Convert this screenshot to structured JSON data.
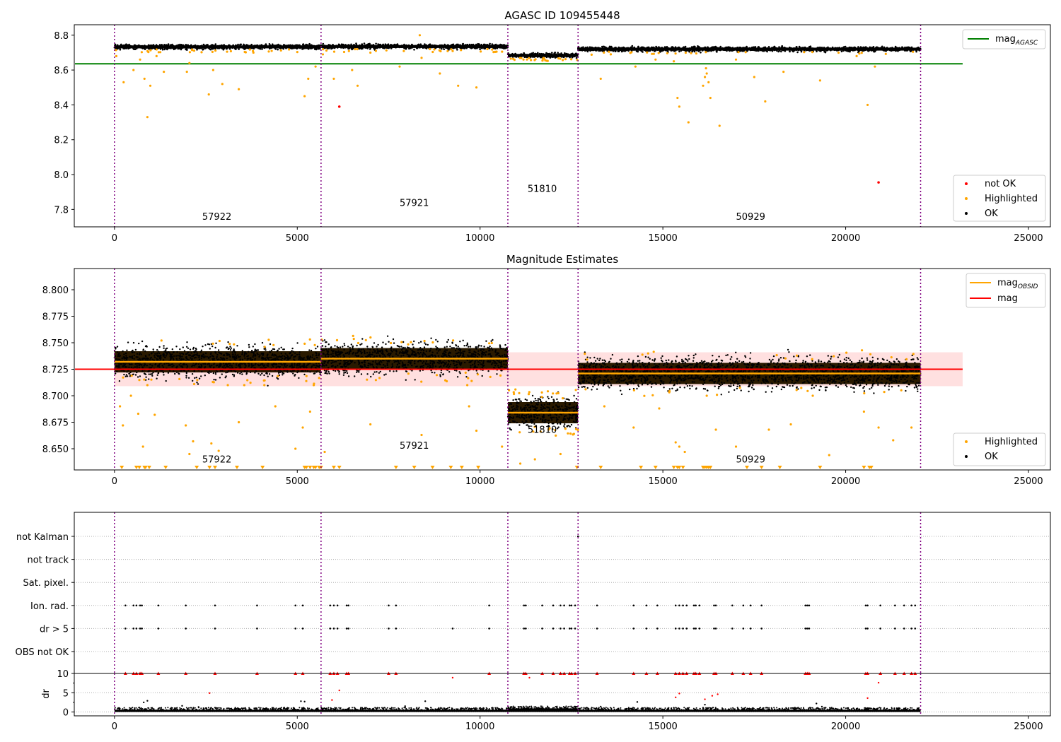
{
  "chart_data": [
    {
      "type": "scatter",
      "title": "AGASC ID 109455448",
      "xlabel": "",
      "ylabel": "",
      "xlim": [
        -1100,
        25600
      ],
      "ylim": [
        7.7,
        8.86
      ],
      "xticks": [
        0,
        5000,
        10000,
        15000,
        20000,
        25000
      ],
      "yticks": [
        7.8,
        8.0,
        8.2,
        8.4,
        8.6,
        8.8
      ],
      "xtick_labels": [
        "0",
        "5000",
        "10000",
        "15000",
        "20000",
        "25000"
      ],
      "ytick_labels": [
        "7.8",
        "8.0",
        "8.2",
        "8.4",
        "8.6",
        "8.8"
      ],
      "grid": false,
      "obs_boundaries": [
        0,
        5650,
        10760,
        12680,
        22050
      ],
      "obs_labels": [
        {
          "text": "57922",
          "x": 2800,
          "y": 7.74
        },
        {
          "text": "57921",
          "x": 8200,
          "y": 7.82
        },
        {
          "text": "51810",
          "x": 11700,
          "y": 7.9
        },
        {
          "text": "50929",
          "x": 17400,
          "y": 7.74
        }
      ],
      "reference_line": {
        "name": "mag",
        "subscript": "AGASC",
        "y": 8.636,
        "x": [
          -1100,
          23200
        ],
        "color": "#008000"
      },
      "ok_bands": [
        {
          "x": [
            0,
            5650
          ],
          "center": 8.733,
          "half": 0.012
        },
        {
          "x": [
            5650,
            10760
          ],
          "center": 8.735,
          "half": 0.012
        },
        {
          "x": [
            10760,
            12680
          ],
          "center": 8.684,
          "half": 0.012
        },
        {
          "x": [
            12680,
            22050
          ],
          "center": 8.72,
          "half": 0.012
        }
      ],
      "highlighted_points": [
        [
          50,
          8.68
        ],
        [
          250,
          8.53
        ],
        [
          520,
          8.6
        ],
        [
          700,
          8.66
        ],
        [
          820,
          8.55
        ],
        [
          900,
          8.33
        ],
        [
          980,
          8.51
        ],
        [
          1150,
          8.68
        ],
        [
          1350,
          8.59
        ],
        [
          1980,
          8.59
        ],
        [
          2050,
          8.64
        ],
        [
          2580,
          8.46
        ],
        [
          2700,
          8.6
        ],
        [
          2950,
          8.52
        ],
        [
          3400,
          8.49
        ],
        [
          3800,
          8.7
        ],
        [
          4300,
          8.71
        ],
        [
          5200,
          8.45
        ],
        [
          5300,
          8.55
        ],
        [
          5500,
          8.62
        ],
        [
          5700,
          8.69
        ],
        [
          6000,
          8.55
        ],
        [
          6500,
          8.6
        ],
        [
          6650,
          8.51
        ],
        [
          7000,
          8.7
        ],
        [
          7800,
          8.62
        ],
        [
          8350,
          8.8
        ],
        [
          8400,
          8.67
        ],
        [
          8900,
          8.58
        ],
        [
          9400,
          8.51
        ],
        [
          9900,
          8.5
        ],
        [
          10200,
          8.72
        ],
        [
          13300,
          8.55
        ],
        [
          14250,
          8.62
        ],
        [
          14800,
          8.66
        ],
        [
          15300,
          8.65
        ],
        [
          15400,
          8.44
        ],
        [
          15450,
          8.39
        ],
        [
          15700,
          8.3
        ],
        [
          16100,
          8.51
        ],
        [
          16150,
          8.56
        ],
        [
          16180,
          8.61
        ],
        [
          16200,
          8.58
        ],
        [
          16250,
          8.53
        ],
        [
          16300,
          8.44
        ],
        [
          16550,
          8.28
        ],
        [
          17000,
          8.66
        ],
        [
          17500,
          8.56
        ],
        [
          17800,
          8.42
        ],
        [
          18300,
          8.59
        ],
        [
          19300,
          8.54
        ],
        [
          20300,
          8.68
        ],
        [
          20600,
          8.4
        ],
        [
          20800,
          8.62
        ]
      ],
      "not_ok_points": [
        [
          6150,
          8.39
        ],
        [
          20900,
          7.955
        ]
      ],
      "legends": [
        {
          "placement": "upper right",
          "entries": [
            {
              "name": "mag",
              "subscript": "AGASC",
              "kind": "line",
              "color": "#008000"
            }
          ]
        },
        {
          "placement": "lower right",
          "entries": [
            {
              "name": "not OK",
              "kind": "marker",
              "color": "#ff0000"
            },
            {
              "name": "Highlighted",
              "kind": "marker",
              "color": "#ffa500"
            },
            {
              "name": "OK",
              "kind": "marker",
              "color": "#000000"
            }
          ]
        }
      ]
    },
    {
      "type": "scatter",
      "title": "Magnitude Estimates",
      "xlabel": "",
      "ylabel": "",
      "xlim": [
        -1100,
        25600
      ],
      "ylim": [
        8.63,
        8.82
      ],
      "xticks": [
        0,
        5000,
        10000,
        15000,
        20000,
        25000
      ],
      "yticks": [
        8.65,
        8.675,
        8.7,
        8.725,
        8.75,
        8.775,
        8.8
      ],
      "xtick_labels": [
        "0",
        "5000",
        "10000",
        "15000",
        "20000",
        "25000"
      ],
      "ytick_labels": [
        "8.650",
        "8.675",
        "8.700",
        "8.725",
        "8.750",
        "8.775",
        "8.800"
      ],
      "grid": false,
      "obs_boundaries": [
        0,
        5650,
        10760,
        12680,
        22050
      ],
      "obs_labels": [
        {
          "text": "57922",
          "x": 2800,
          "y": 8.637
        },
        {
          "text": "57921",
          "x": 8200,
          "y": 8.65
        },
        {
          "text": "51810",
          "x": 11700,
          "y": 8.665
        },
        {
          "text": "50929",
          "x": 17400,
          "y": 8.637
        }
      ],
      "mag_line": {
        "name": "mag",
        "y": 8.725,
        "band": [
          8.709,
          8.741
        ],
        "x": [
          -1100,
          23200
        ],
        "color": "#ff0000"
      },
      "obsid_segments": [
        {
          "x": [
            0,
            5650
          ],
          "y": 8.732,
          "half": 0.01
        },
        {
          "x": [
            5650,
            10760
          ],
          "y": 8.735,
          "half": 0.01
        },
        {
          "x": [
            10760,
            12680
          ],
          "y": 8.684,
          "half": 0.01
        },
        {
          "x": [
            12680,
            22050
          ],
          "y": 8.721,
          "half": 0.01
        }
      ],
      "highlighted_points": [
        [
          150,
          8.69
        ],
        [
          230,
          8.672
        ],
        [
          450,
          8.7
        ],
        [
          650,
          8.683
        ],
        [
          780,
          8.652
        ],
        [
          900,
          8.71
        ],
        [
          1100,
          8.682
        ],
        [
          1950,
          8.672
        ],
        [
          2050,
          8.645
        ],
        [
          2150,
          8.657
        ],
        [
          2650,
          8.655
        ],
        [
          2850,
          8.648
        ],
        [
          3100,
          8.71
        ],
        [
          3400,
          8.675
        ],
        [
          3550,
          8.71
        ],
        [
          4100,
          8.71
        ],
        [
          4400,
          8.69
        ],
        [
          4950,
          8.65
        ],
        [
          5150,
          8.67
        ],
        [
          5350,
          8.685
        ],
        [
          5450,
          8.71
        ],
        [
          5750,
          8.647
        ],
        [
          7000,
          8.673
        ],
        [
          8400,
          8.663
        ],
        [
          9650,
          8.71
        ],
        [
          9700,
          8.69
        ],
        [
          9900,
          8.667
        ],
        [
          10600,
          8.652
        ],
        [
          11100,
          8.636
        ],
        [
          11500,
          8.64
        ],
        [
          12200,
          8.645
        ],
        [
          13400,
          8.69
        ],
        [
          14200,
          8.67
        ],
        [
          14900,
          8.688
        ],
        [
          15350,
          8.656
        ],
        [
          15450,
          8.652
        ],
        [
          15600,
          8.647
        ],
        [
          16200,
          8.7
        ],
        [
          16450,
          8.668
        ],
        [
          17000,
          8.652
        ],
        [
          17900,
          8.668
        ],
        [
          18500,
          8.673
        ],
        [
          19100,
          8.7
        ],
        [
          19550,
          8.644
        ],
        [
          20500,
          8.685
        ],
        [
          20900,
          8.67
        ],
        [
          21300,
          8.658
        ],
        [
          21800,
          8.67
        ]
      ],
      "clipped_highlighted_x": [
        200,
        600,
        680,
        820,
        850,
        950,
        1400,
        2250,
        2600,
        2750,
        3350,
        4050,
        5200,
        5250,
        5350,
        5450,
        5500,
        5600,
        5650,
        6000,
        6150,
        7700,
        8200,
        8700,
        9200,
        9500,
        9950,
        12650,
        13300,
        14400,
        14800,
        15300,
        15400,
        15450,
        15550,
        16100,
        16150,
        16200,
        16250,
        16300,
        17300,
        17700,
        18200,
        19300,
        20500,
        20650,
        20700
      ],
      "legends": [
        {
          "placement": "upper right",
          "entries": [
            {
              "name": "mag",
              "subscript": "OBSID",
              "kind": "line",
              "color": "#ffa500"
            },
            {
              "name": "mag",
              "kind": "line",
              "color": "#ff0000"
            }
          ]
        },
        {
          "placement": "lower right",
          "entries": [
            {
              "name": "Highlighted",
              "kind": "marker",
              "color": "#ffa500"
            },
            {
              "name": "OK",
              "kind": "marker",
              "color": "#000000"
            }
          ]
        }
      ]
    },
    {
      "type": "scatter",
      "title": "",
      "xlabel": "",
      "ylabel": "",
      "xlim": [
        -1100,
        25600
      ],
      "grid": true,
      "obs_boundaries": [
        0,
        5650,
        10760,
        12680,
        22050
      ],
      "flag_rows": [
        "not Kalman",
        "not track",
        "Sat. pixel.",
        "Ion. rad.",
        "dr > 5",
        "OBS not OK"
      ],
      "flag_events": {
        "not Kalman": [
          12680
        ],
        "not track": [],
        "Sat. pixel.": [],
        "Ion. rad.": [
          300,
          520,
          600,
          700,
          750,
          1200,
          1950,
          2750,
          3900,
          4950,
          5150,
          5900,
          6000,
          6100,
          6350,
          6400,
          7500,
          7700,
          10250,
          11200,
          11250,
          11700,
          12000,
          12200,
          12300,
          12450,
          12500,
          12600,
          13200,
          14200,
          14550,
          14850,
          15350,
          15450,
          15550,
          15650,
          15850,
          15900,
          16000,
          16400,
          16450,
          16900,
          17200,
          17400,
          17700,
          18900,
          18950,
          19000,
          20550,
          20600,
          20950,
          21350,
          21600,
          21800,
          21900
        ],
        "dr > 5": [
          300,
          520,
          600,
          700,
          750,
          1200,
          1950,
          2750,
          3900,
          4950,
          5150,
          5900,
          6000,
          6100,
          6350,
          6400,
          7500,
          7700,
          9250,
          10250,
          11200,
          11250,
          11700,
          12000,
          12200,
          12300,
          12450,
          12500,
          12600,
          13200,
          14200,
          14550,
          14850,
          15350,
          15450,
          15550,
          15650,
          15850,
          15900,
          16000,
          16400,
          16450,
          16900,
          17200,
          17400,
          17700,
          18900,
          18950,
          19000,
          20550,
          20600,
          20950,
          21350,
          21600,
          21800,
          21900
        ],
        "OBS not OK": []
      },
      "dr_axis": {
        "ylabel": "dr",
        "ylim": [
          -1,
          10
        ],
        "yticks": [
          0,
          5,
          10
        ],
        "ytick_labels": [
          "0",
          "5",
          "10"
        ]
      },
      "dr_capped_x": [
        300,
        520,
        600,
        700,
        750,
        1200,
        1950,
        2750,
        3900,
        4950,
        5150,
        5900,
        6000,
        6100,
        6350,
        6400,
        7500,
        7700,
        10250,
        11200,
        11250,
        11700,
        12000,
        12200,
        12300,
        12450,
        12500,
        12600,
        13200,
        14200,
        14550,
        14850,
        15350,
        15450,
        15550,
        15650,
        15850,
        15900,
        16000,
        16400,
        16450,
        16900,
        17200,
        17400,
        17700,
        18900,
        18950,
        19000,
        20550,
        20600,
        20950,
        21350,
        21600,
        21800,
        21900
      ],
      "dr_red_points": [
        [
          2600,
          4.9
        ],
        [
          5950,
          3.1
        ],
        [
          6150,
          5.6
        ],
        [
          9250,
          8.9
        ],
        [
          11350,
          8.9
        ],
        [
          15350,
          3.8
        ],
        [
          15450,
          4.8
        ],
        [
          16150,
          3.3
        ],
        [
          16350,
          4.2
        ],
        [
          16500,
          4.6
        ],
        [
          20600,
          3.6
        ],
        [
          20900,
          7.6
        ]
      ],
      "dr_black_points": [
        [
          800,
          2.5
        ],
        [
          900,
          2.9
        ],
        [
          1850,
          1.6
        ],
        [
          2300,
          1.3
        ],
        [
          5100,
          2.8
        ],
        [
          5200,
          2.7
        ],
        [
          7950,
          1.5
        ],
        [
          8500,
          2.8
        ],
        [
          10950,
          1.2
        ],
        [
          13300,
          1.4
        ],
        [
          14300,
          2.6
        ],
        [
          16100,
          1.1
        ],
        [
          16150,
          1.9
        ],
        [
          19200,
          2.2
        ],
        [
          19350,
          1.4
        ]
      ]
    }
  ]
}
